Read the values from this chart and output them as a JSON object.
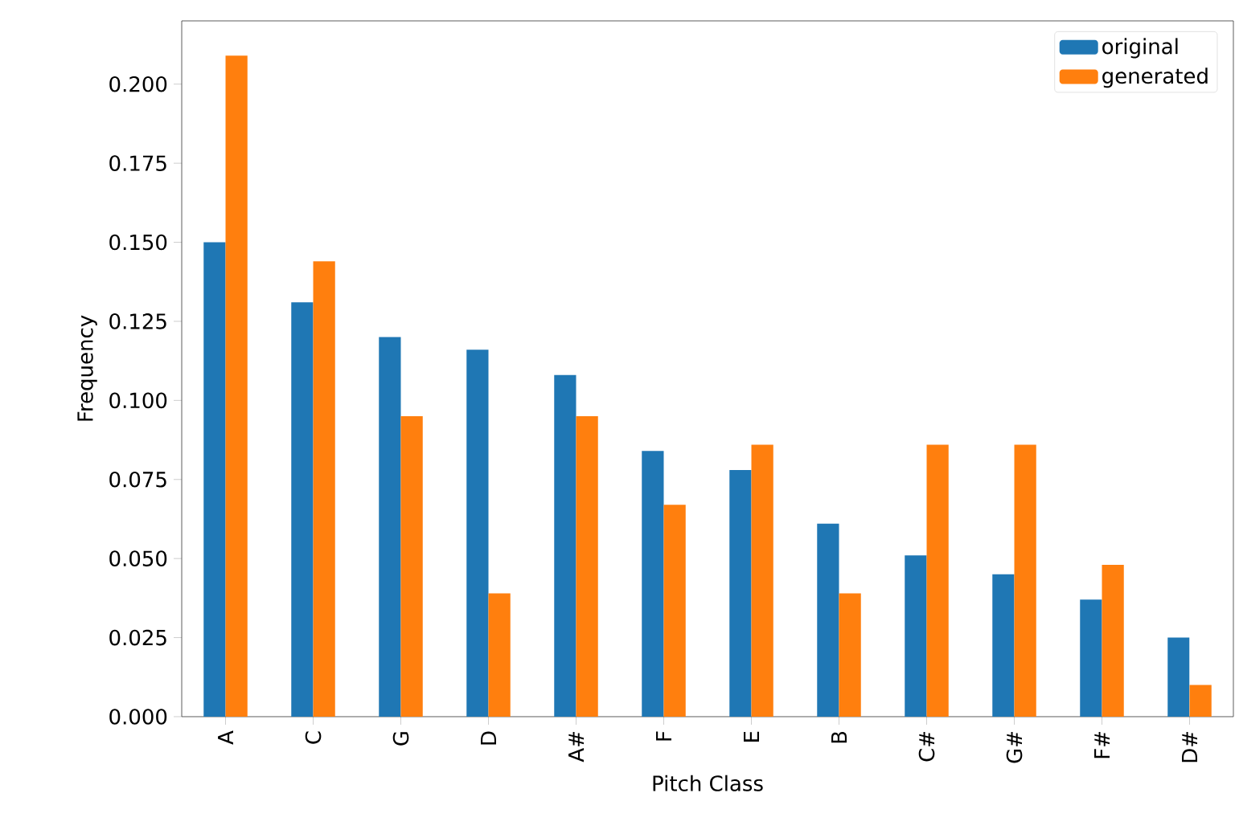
{
  "chart_data": {
    "type": "bar",
    "xlabel": "Pitch Class",
    "ylabel": "Frequency",
    "categories": [
      "A",
      "C",
      "G",
      "D",
      "A#",
      "F",
      "E",
      "B",
      "C#",
      "G#",
      "F#",
      "D#"
    ],
    "series": [
      {
        "name": "original",
        "color": "#1f77b4",
        "values": [
          0.15,
          0.131,
          0.12,
          0.116,
          0.108,
          0.084,
          0.078,
          0.061,
          0.051,
          0.045,
          0.037,
          0.025
        ]
      },
      {
        "name": "generated",
        "color": "#ff7f0e",
        "values": [
          0.209,
          0.144,
          0.095,
          0.039,
          0.095,
          0.067,
          0.086,
          0.039,
          0.086,
          0.086,
          0.048,
          0.01
        ]
      }
    ],
    "ylim": [
      0,
      0.22
    ],
    "yticks": [
      {
        "value": 0,
        "label": "0.000"
      },
      {
        "value": 0.025,
        "label": "0.025"
      },
      {
        "value": 0.05,
        "label": "0.050"
      },
      {
        "value": 0.075,
        "label": "0.075"
      },
      {
        "value": 0.1,
        "label": "0.100"
      },
      {
        "value": 0.125,
        "label": "0.125"
      },
      {
        "value": 0.15,
        "label": "0.150"
      },
      {
        "value": 0.175,
        "label": "0.175"
      },
      {
        "value": 0.2,
        "label": "0.200"
      }
    ],
    "legend": "top right",
    "grid": false
  }
}
